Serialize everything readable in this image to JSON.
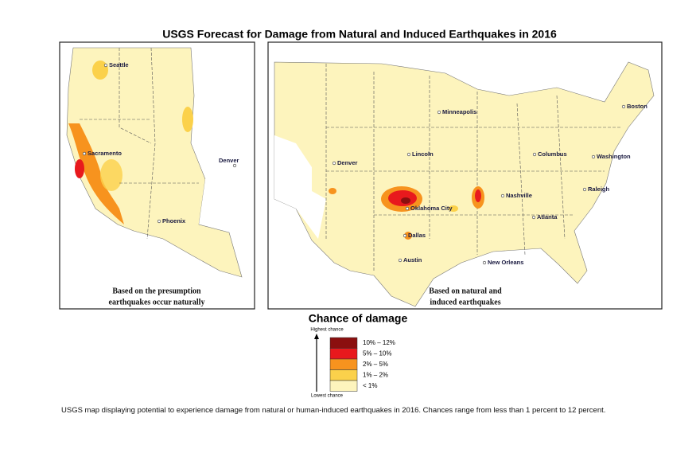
{
  "title": "USGS Forecast for Damage from Natural and Induced Earthquakes in 2016",
  "panels": [
    {
      "cities": [
        "Seattle",
        "Sacramento",
        "Denver",
        "Phoenix"
      ],
      "caption": [
        "Based on the presumption",
        "earthquakes occur naturally"
      ]
    },
    {
      "cities": [
        "Minneapolis",
        "Boston",
        "Lincoln",
        "Columbus",
        "Washington",
        "Denver",
        "Raleigh",
        "Nashville",
        "Oklahoma City",
        "Atlanta",
        "Dallas",
        "Austin",
        "New Orleans"
      ],
      "caption": [
        "Based on natural and",
        "induced earthquakes"
      ]
    }
  ],
  "legend": {
    "title": "Chance of damage",
    "high": "Highest chance",
    "low": "Lowest chance",
    "items": [
      {
        "label": "10% – 12%",
        "color": "#8b0f0f"
      },
      {
        "label": "5% – 10%",
        "color": "#e8191d"
      },
      {
        "label": "2% – 5%",
        "color": "#f7931e"
      },
      {
        "label": "1% – 2%",
        "color": "#fbd14b"
      },
      {
        "label": "< 1%",
        "color": "#fdf4bd"
      }
    ]
  },
  "caption": "USGS map displaying potential to experience damage from natural or human-induced earthquakes in 2016. Chances range from less than 1 percent to 12 percent."
}
